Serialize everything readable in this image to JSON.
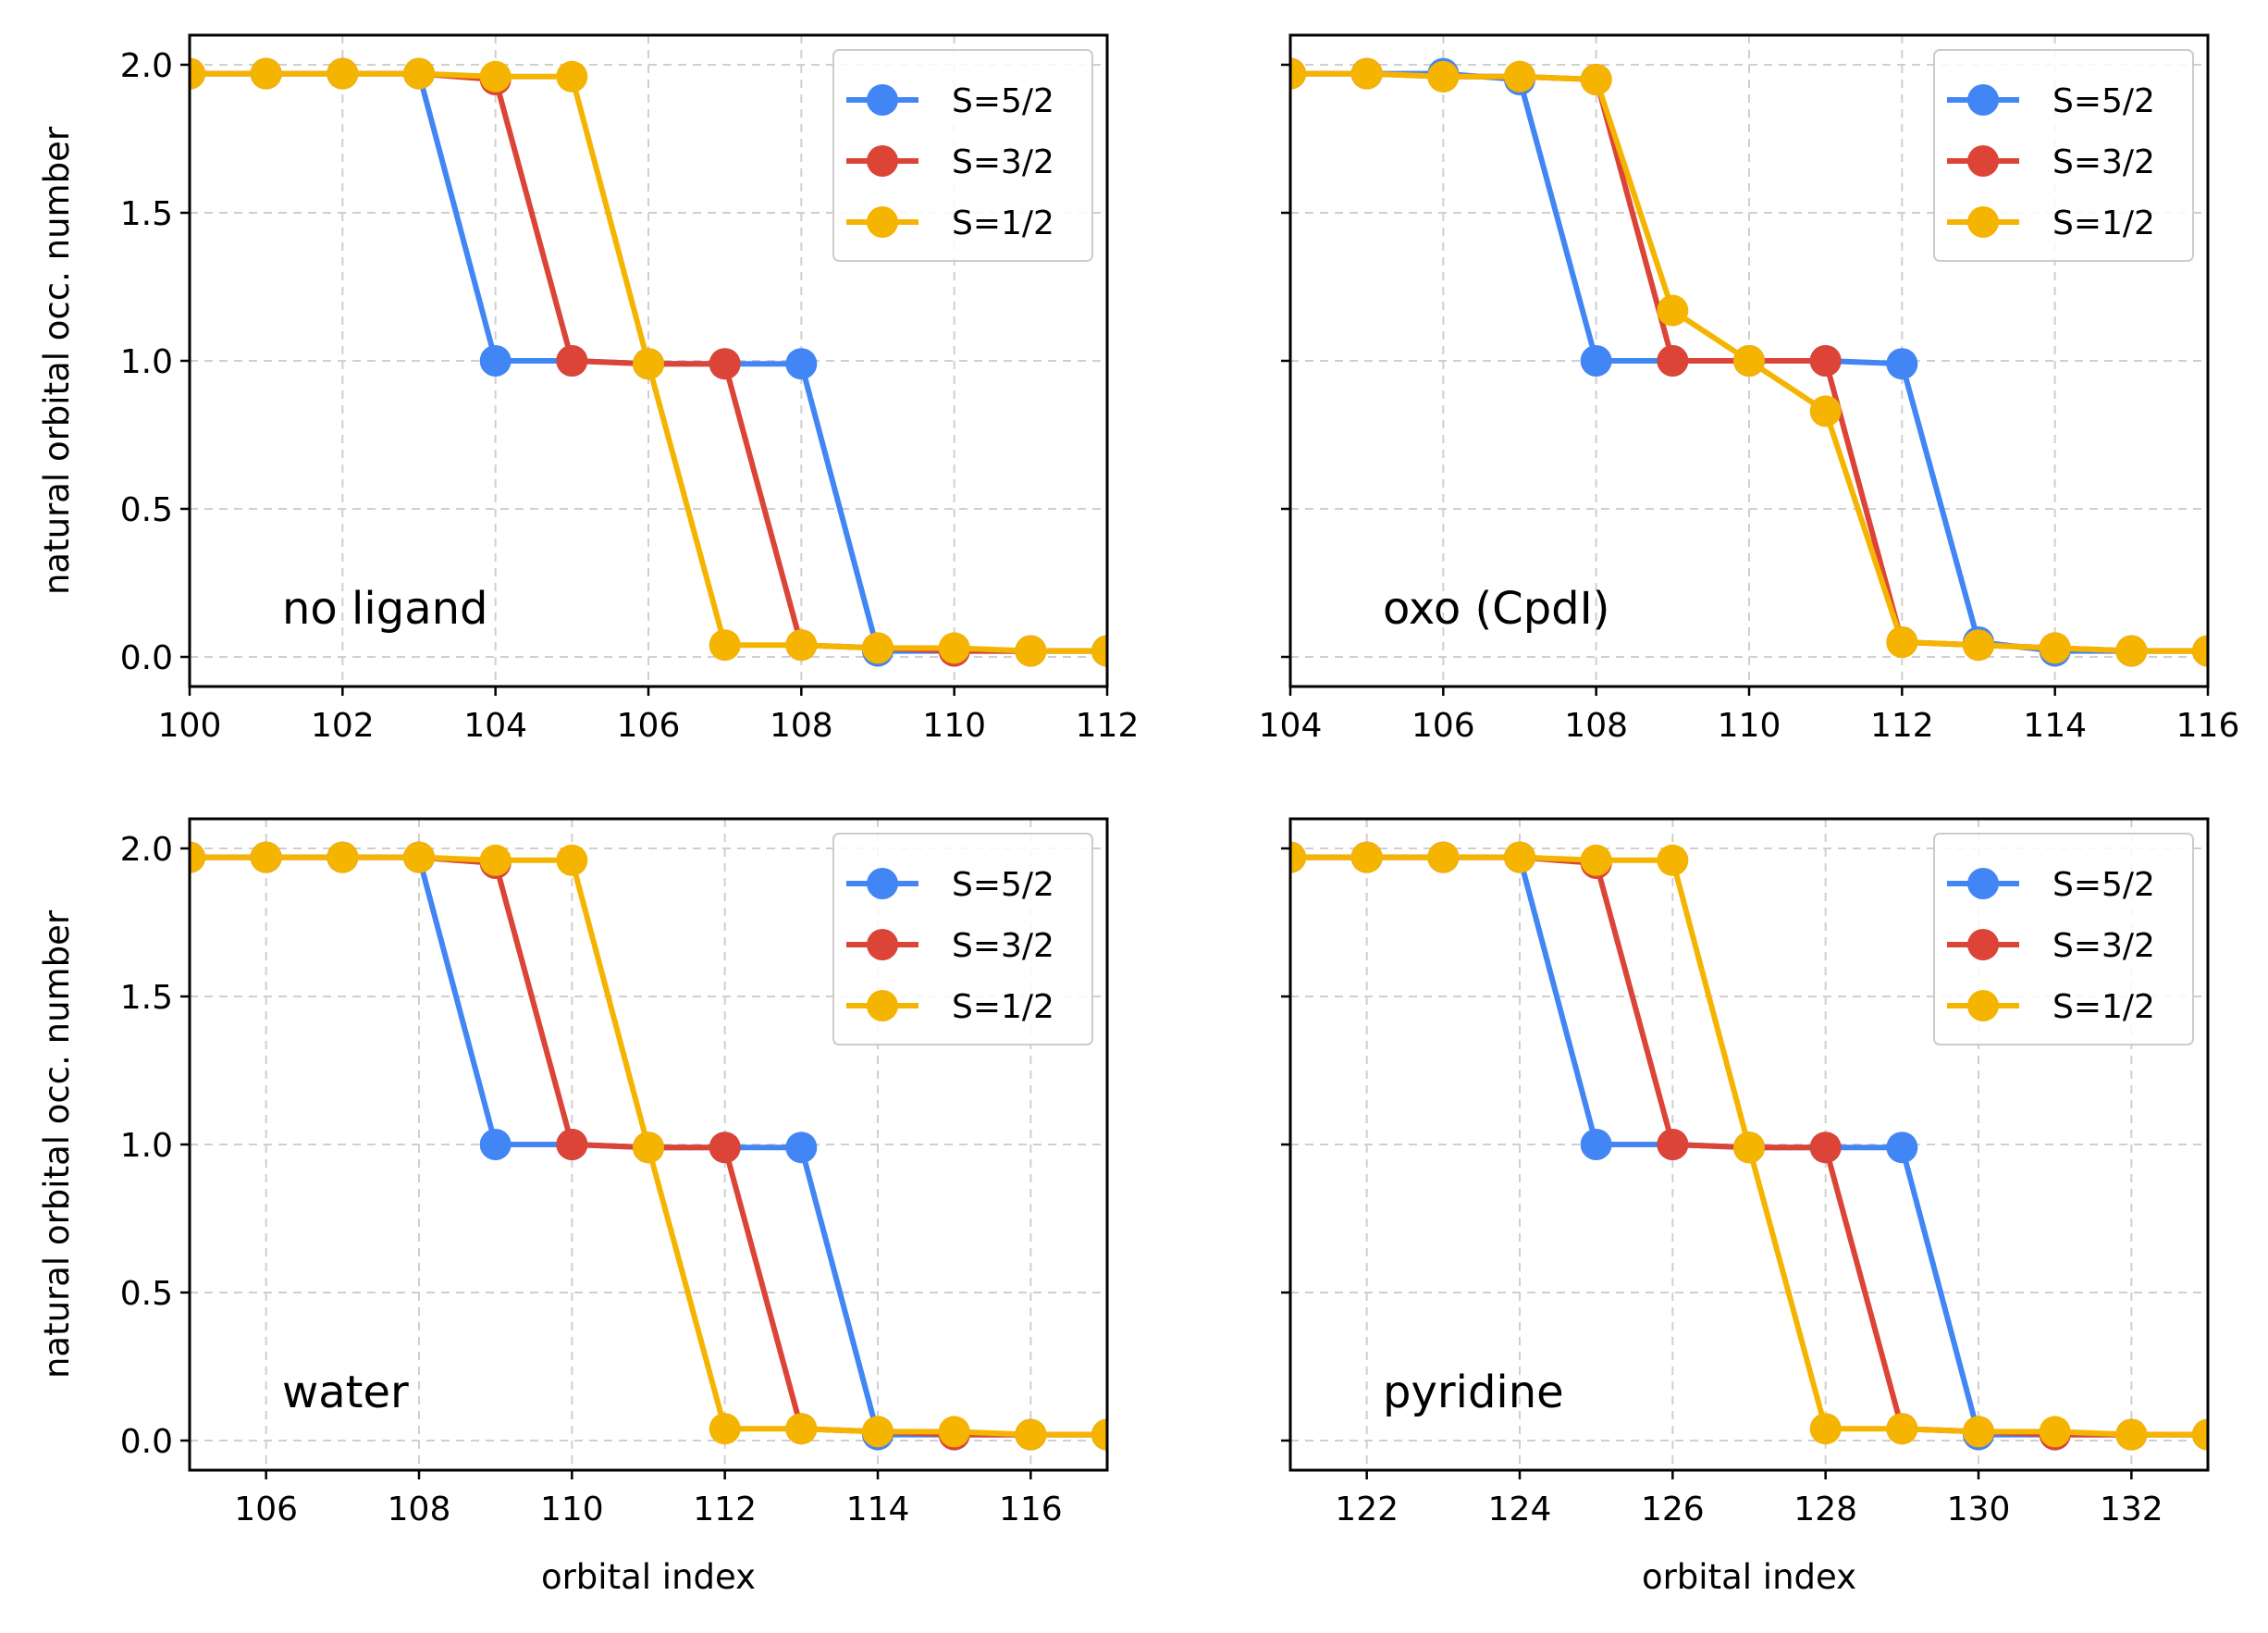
{
  "figure": {
    "ylabel": "natural orbital occ. number",
    "xlabel": "orbital index"
  },
  "colors": {
    "S=5/2": "#4285f4",
    "S=3/2": "#db4437",
    "S=1/2": "#f4b400"
  },
  "chart_data": [
    {
      "type": "line",
      "annotation": "no ligand",
      "xlim": [
        100,
        112
      ],
      "ylim": [
        -0.1,
        2.1
      ],
      "xticks": [
        100,
        102,
        104,
        106,
        108,
        110,
        112
      ],
      "yticks": [
        0.0,
        0.5,
        1.0,
        1.5,
        2.0
      ],
      "ytick_labels": [
        "0.0",
        "0.5",
        "1.0",
        "1.5",
        "2.0"
      ],
      "show_xlabel": false,
      "show_ytick_labels": true,
      "show_ylabel": true,
      "grid": true,
      "legend": "top-right",
      "series": [
        {
          "name": "S=5/2",
          "x": [
            100,
            101,
            102,
            103,
            104,
            105,
            106,
            107,
            108,
            109,
            110,
            111,
            112
          ],
          "y": [
            1.97,
            1.97,
            1.97,
            1.97,
            1.0,
            1.0,
            0.99,
            0.99,
            0.99,
            0.02,
            0.02,
            0.02,
            0.02
          ]
        },
        {
          "name": "S=3/2",
          "x": [
            100,
            101,
            102,
            103,
            104,
            105,
            106,
            107,
            108,
            109,
            110,
            111,
            112
          ],
          "y": [
            1.97,
            1.97,
            1.97,
            1.97,
            1.95,
            1.0,
            0.99,
            0.99,
            0.04,
            0.03,
            0.02,
            0.02,
            0.02
          ]
        },
        {
          "name": "S=1/2",
          "x": [
            100,
            101,
            102,
            103,
            104,
            105,
            106,
            107,
            108,
            109,
            110,
            111,
            112
          ],
          "y": [
            1.97,
            1.97,
            1.97,
            1.97,
            1.96,
            1.96,
            0.99,
            0.04,
            0.04,
            0.03,
            0.03,
            0.02,
            0.02
          ]
        }
      ]
    },
    {
      "type": "line",
      "annotation": "oxo (CpdI)",
      "xlim": [
        104,
        116
      ],
      "ylim": [
        -0.1,
        2.1
      ],
      "xticks": [
        104,
        106,
        108,
        110,
        112,
        114,
        116
      ],
      "yticks": [
        0.0,
        0.5,
        1.0,
        1.5,
        2.0
      ],
      "ytick_labels": [
        "0.0",
        "0.5",
        "1.0",
        "1.5",
        "2.0"
      ],
      "show_xlabel": false,
      "show_ytick_labels": false,
      "show_ylabel": false,
      "grid": true,
      "legend": "top-right",
      "series": [
        {
          "name": "S=5/2",
          "x": [
            104,
            105,
            106,
            107,
            108,
            109,
            110,
            111,
            112,
            113,
            114,
            115,
            116
          ],
          "y": [
            1.97,
            1.97,
            1.97,
            1.95,
            1.0,
            1.0,
            1.0,
            1.0,
            0.99,
            0.05,
            0.02,
            0.02,
            0.02
          ]
        },
        {
          "name": "S=3/2",
          "x": [
            104,
            105,
            106,
            107,
            108,
            109,
            110,
            111,
            112,
            113,
            114,
            115,
            116
          ],
          "y": [
            1.97,
            1.97,
            1.96,
            1.96,
            1.95,
            1.0,
            1.0,
            1.0,
            0.05,
            0.04,
            0.03,
            0.02,
            0.02
          ]
        },
        {
          "name": "S=1/2",
          "x": [
            104,
            105,
            106,
            107,
            108,
            109,
            110,
            111,
            112,
            113,
            114,
            115,
            116
          ],
          "y": [
            1.97,
            1.97,
            1.96,
            1.96,
            1.95,
            1.17,
            1.0,
            0.83,
            0.05,
            0.04,
            0.03,
            0.02,
            0.02
          ]
        }
      ]
    },
    {
      "type": "line",
      "annotation": "water",
      "xlim": [
        105,
        117
      ],
      "ylim": [
        -0.1,
        2.1
      ],
      "xticks": [
        106,
        108,
        110,
        112,
        114,
        116
      ],
      "yticks": [
        0.0,
        0.5,
        1.0,
        1.5,
        2.0
      ],
      "ytick_labels": [
        "0.0",
        "0.5",
        "1.0",
        "1.5",
        "2.0"
      ],
      "show_xlabel": true,
      "show_ytick_labels": true,
      "show_ylabel": true,
      "grid": true,
      "legend": "top-right",
      "series": [
        {
          "name": "S=5/2",
          "x": [
            105,
            106,
            107,
            108,
            109,
            110,
            111,
            112,
            113,
            114,
            115,
            116,
            117
          ],
          "y": [
            1.97,
            1.97,
            1.97,
            1.97,
            1.0,
            1.0,
            0.99,
            0.99,
            0.99,
            0.02,
            0.02,
            0.02,
            0.02
          ]
        },
        {
          "name": "S=3/2",
          "x": [
            105,
            106,
            107,
            108,
            109,
            110,
            111,
            112,
            113,
            114,
            115,
            116,
            117
          ],
          "y": [
            1.97,
            1.97,
            1.97,
            1.97,
            1.95,
            1.0,
            0.99,
            0.99,
            0.04,
            0.03,
            0.02,
            0.02,
            0.02
          ]
        },
        {
          "name": "S=1/2",
          "x": [
            105,
            106,
            107,
            108,
            109,
            110,
            111,
            112,
            113,
            114,
            115,
            116,
            117
          ],
          "y": [
            1.97,
            1.97,
            1.97,
            1.97,
            1.96,
            1.96,
            0.99,
            0.04,
            0.04,
            0.03,
            0.03,
            0.02,
            0.02
          ]
        }
      ]
    },
    {
      "type": "line",
      "annotation": "pyridine",
      "xlim": [
        121,
        133
      ],
      "ylim": [
        -0.1,
        2.1
      ],
      "xticks": [
        122,
        124,
        126,
        128,
        130,
        132
      ],
      "yticks": [
        0.0,
        0.5,
        1.0,
        1.5,
        2.0
      ],
      "ytick_labels": [
        "0.0",
        "0.5",
        "1.0",
        "1.5",
        "2.0"
      ],
      "show_xlabel": true,
      "show_ytick_labels": false,
      "show_ylabel": false,
      "grid": true,
      "legend": "top-right",
      "series": [
        {
          "name": "S=5/2",
          "x": [
            121,
            122,
            123,
            124,
            125,
            126,
            127,
            128,
            129,
            130,
            131,
            132,
            133
          ],
          "y": [
            1.97,
            1.97,
            1.97,
            1.97,
            1.0,
            1.0,
            0.99,
            0.99,
            0.99,
            0.02,
            0.02,
            0.02,
            0.02
          ]
        },
        {
          "name": "S=3/2",
          "x": [
            121,
            122,
            123,
            124,
            125,
            126,
            127,
            128,
            129,
            130,
            131,
            132,
            133
          ],
          "y": [
            1.97,
            1.97,
            1.97,
            1.97,
            1.95,
            1.0,
            0.99,
            0.99,
            0.04,
            0.03,
            0.02,
            0.02,
            0.02
          ]
        },
        {
          "name": "S=1/2",
          "x": [
            121,
            122,
            123,
            124,
            125,
            126,
            127,
            128,
            129,
            130,
            131,
            132,
            133
          ],
          "y": [
            1.97,
            1.97,
            1.97,
            1.97,
            1.96,
            1.96,
            0.99,
            0.04,
            0.04,
            0.03,
            0.03,
            0.02,
            0.02
          ]
        }
      ]
    }
  ]
}
